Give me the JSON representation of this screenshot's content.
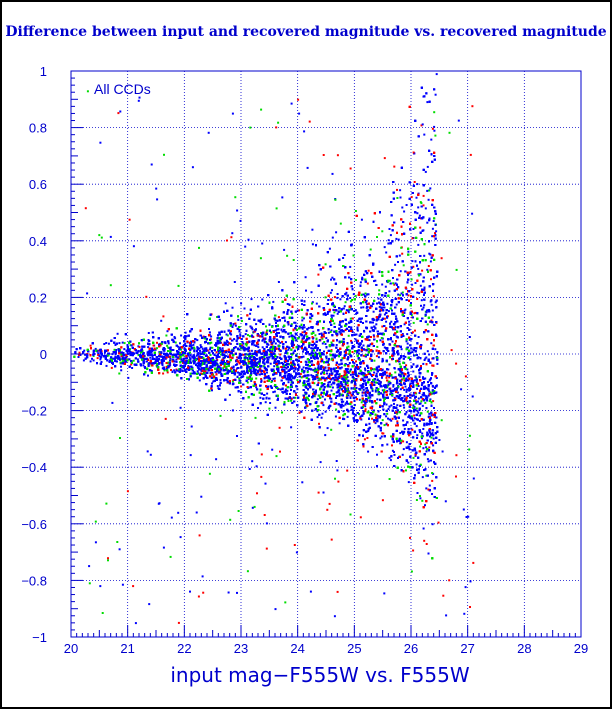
{
  "chart_data": {
    "type": "scatter",
    "title": "Difference between input and recovered magnitude vs. recovered magnitude",
    "xlabel": "input mag−F555W vs. F555W",
    "ylabel": "",
    "annotation": "All CCDs",
    "xlim": [
      20,
      29
    ],
    "ylim": [
      -1,
      1
    ],
    "x_ticks": [
      20,
      21,
      22,
      23,
      24,
      25,
      26,
      27,
      28,
      29
    ],
    "y_ticks": [
      -1,
      -0.8,
      -0.6,
      -0.4,
      -0.2,
      0,
      0.2,
      0.4,
      0.6,
      0.8,
      1
    ],
    "y_tick_labels": [
      "−1",
      "−0.8",
      "−0.6",
      "−0.4",
      "−0.2",
      "0",
      "0.2",
      "0.4",
      "0.6",
      "0.8",
      "1"
    ],
    "grid": true,
    "grid_style": "dotted",
    "series_colors": [
      "#0000ff",
      "#ff0000",
      "#00dd00"
    ],
    "dominant_color": "#0000ff",
    "axis_color": "#0000cc",
    "envelope": {
      "x": [
        20.0,
        21.0,
        22.0,
        23.0,
        24.0,
        25.0,
        25.5,
        26.0,
        26.3,
        26.5
      ],
      "mean": [
        0.0,
        -0.005,
        -0.01,
        -0.02,
        -0.03,
        -0.05,
        -0.06,
        -0.07,
        -0.08,
        -0.09
      ],
      "upper": [
        0.03,
        0.06,
        0.1,
        0.16,
        0.24,
        0.38,
        0.5,
        0.75,
        1.0,
        1.0
      ],
      "lower": [
        -0.03,
        -0.06,
        -0.1,
        -0.15,
        -0.21,
        -0.3,
        -0.38,
        -0.52,
        -0.62,
        -0.65
      ],
      "x_cutoff": 26.45
    }
  }
}
